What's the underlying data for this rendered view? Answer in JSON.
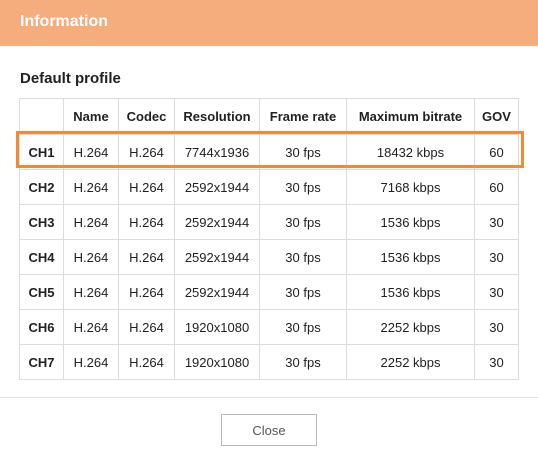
{
  "dialog": {
    "title": "Information",
    "section_title": "Default profile",
    "close_label": "Close"
  },
  "table": {
    "headers": [
      "",
      "Name",
      "Codec",
      "Resolution",
      "Frame rate",
      "Maximum bitrate",
      "GOV"
    ],
    "rows": [
      [
        "CH1",
        "H.264",
        "H.264",
        "7744x1936",
        "30 fps",
        "18432 kbps",
        "60"
      ],
      [
        "CH2",
        "H.264",
        "H.264",
        "2592x1944",
        "30 fps",
        "7168 kbps",
        "60"
      ],
      [
        "CH3",
        "H.264",
        "H.264",
        "2592x1944",
        "30 fps",
        "1536 kbps",
        "30"
      ],
      [
        "CH4",
        "H.264",
        "H.264",
        "2592x1944",
        "30 fps",
        "1536 kbps",
        "30"
      ],
      [
        "CH5",
        "H.264",
        "H.264",
        "2592x1944",
        "30 fps",
        "1536 kbps",
        "30"
      ],
      [
        "CH6",
        "H.264",
        "H.264",
        "1920x1080",
        "30 fps",
        "2252 kbps",
        "30"
      ],
      [
        "CH7",
        "H.264",
        "H.264",
        "1920x1080",
        "30 fps",
        "2252 kbps",
        "30"
      ]
    ],
    "highlighted_row": "CH1"
  },
  "colors": {
    "titlebar": "#f6ad7d",
    "highlight": "#f08a35"
  }
}
